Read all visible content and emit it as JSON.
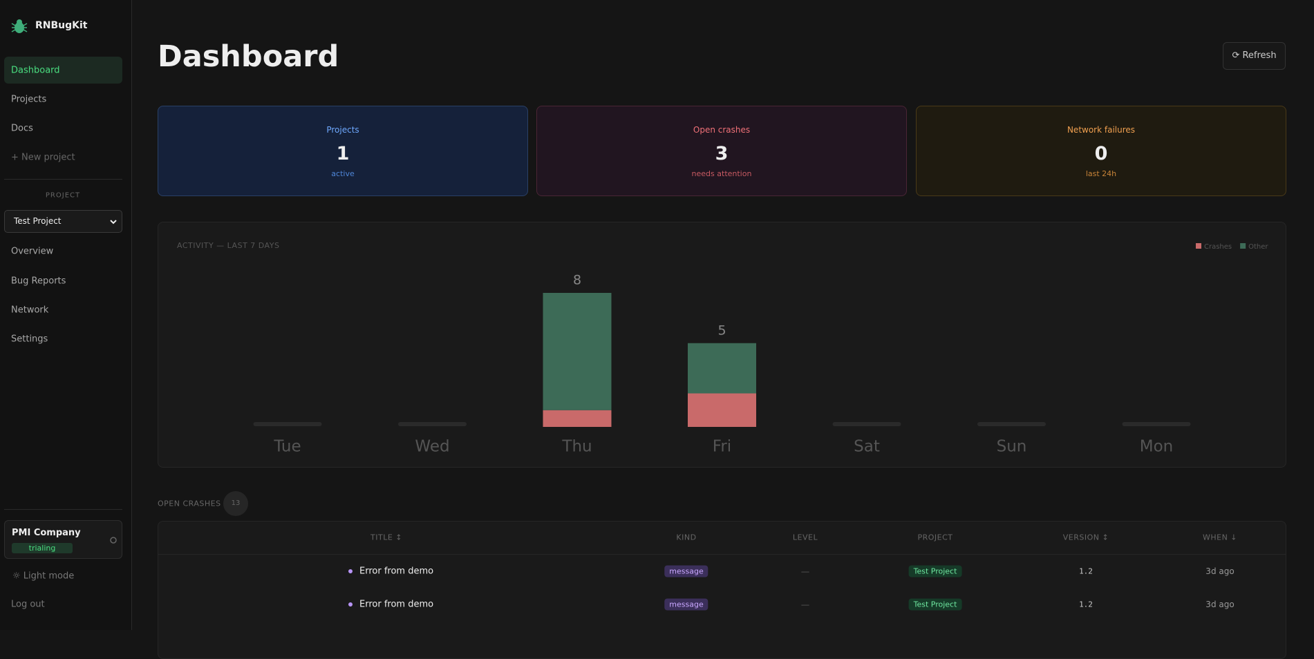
{
  "sidebar": {
    "brand": "RNBugKit",
    "nav": [
      "Dashboard",
      "Projects",
      "Docs",
      "+ New project"
    ],
    "project_label": "PROJECT",
    "project_select": "Test Project",
    "project_nav": [
      "Overview",
      "Bug Reports",
      "Network",
      "Settings"
    ],
    "org": {
      "name": "PMI Company",
      "status": "trialing"
    },
    "theme": "Light mode",
    "logout": "Log out"
  },
  "header": {
    "title": "Dashboard",
    "refresh": "Refresh"
  },
  "stats": [
    {
      "label": "Projects",
      "value": 1,
      "note": "active"
    },
    {
      "label": "Open crashes",
      "value": 3,
      "note": "needs attention"
    },
    {
      "label": "Network failures",
      "value": 0,
      "note": "last 24h"
    }
  ],
  "chart_data": {
    "type": "bar",
    "stacked": true,
    "title": "ACTIVITY — LAST 7 DAYS",
    "categories": [
      "Tue",
      "Wed",
      "Thu",
      "Fri",
      "Sat",
      "Sun",
      "Mon"
    ],
    "series": [
      {
        "name": "Crashes",
        "color": "#c96a6a",
        "values": [
          0,
          0,
          1,
          2,
          0,
          0,
          0
        ]
      },
      {
        "name": "Other",
        "color": "#3d6b57",
        "values": [
          0,
          0,
          7,
          3,
          0,
          0,
          0
        ]
      }
    ],
    "totals": [
      null,
      null,
      8,
      5,
      null,
      null,
      null
    ],
    "ylim": [
      0,
      8
    ]
  },
  "crashes": {
    "title": "OPEN CRASHES",
    "count": 13,
    "columns": [
      "TITLE ↕",
      "KIND",
      "LEVEL",
      "PROJECT",
      "VERSION ↕",
      "WHEN ↓"
    ],
    "rows": [
      [
        "Error from demo",
        "message",
        "—",
        "Test Project",
        "1.2",
        "3d ago"
      ],
      [
        "Error from demo",
        "message",
        "—",
        "Test Project",
        "1.2",
        "3d ago"
      ]
    ]
  }
}
